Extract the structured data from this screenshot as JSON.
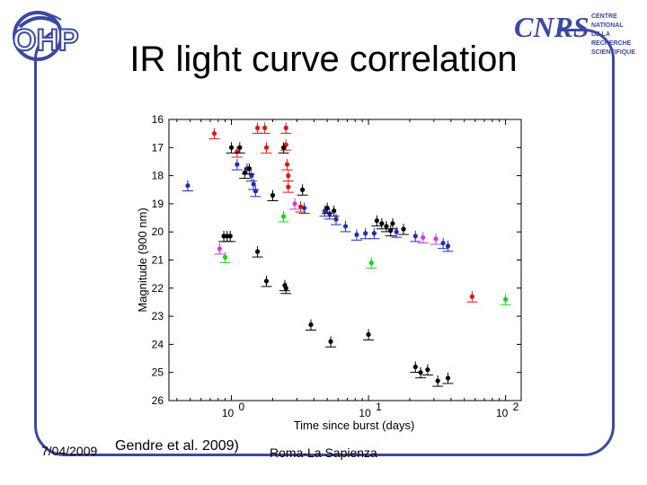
{
  "header": {
    "title": "IR light curve correlation",
    "logo_left_text": "OHP",
    "logo_right_brand": "CNRS",
    "logo_right_lines": [
      "CENTRE NATIONAL",
      "DE LA RECHERCHE",
      "SCIENTIFIQUE"
    ]
  },
  "footer": {
    "date": "7/04/2009",
    "citation": "Gendre et al. 2009)",
    "place": "Roma-La Sapienza"
  },
  "colors": {
    "frame": "#3b49a0",
    "black": "#000000",
    "blue": "#1f2fb0",
    "red": "#e01414",
    "magenta": "#d23cd2",
    "green": "#19d319"
  },
  "chart_data": {
    "type": "scatter",
    "xlabel": "Time since burst (days)",
    "ylabel": "Magnitude (900 nm)",
    "xscale": "log",
    "xlim": [
      0.35,
      130
    ],
    "ylim": [
      26,
      16
    ],
    "yticks": [
      16,
      17,
      18,
      19,
      20,
      21,
      22,
      23,
      24,
      25,
      26
    ],
    "xticks": [
      {
        "value": 1,
        "base": "10",
        "exp": "0"
      },
      {
        "value": 10,
        "base": "10",
        "exp": "1"
      },
      {
        "value": 100,
        "base": "10",
        "exp": "2"
      }
    ],
    "series": [
      {
        "color": "red",
        "points": [
          {
            "x": 0.75,
            "y": 16.5
          },
          {
            "x": 1.1,
            "y": 17.15
          },
          {
            "x": 1.55,
            "y": 16.3
          },
          {
            "x": 1.75,
            "y": 16.3
          },
          {
            "x": 1.8,
            "y": 17.0
          },
          {
            "x": 2.5,
            "y": 16.3
          },
          {
            "x": 2.5,
            "y": 16.9
          },
          {
            "x": 2.55,
            "y": 17.6
          },
          {
            "x": 2.6,
            "y": 18.0
          },
          {
            "x": 2.6,
            "y": 18.4
          },
          {
            "x": 3.2,
            "y": 19.1
          },
          {
            "x": 57,
            "y": 22.3
          }
        ]
      },
      {
        "color": "blue",
        "points": [
          {
            "x": 0.48,
            "y": 18.35
          },
          {
            "x": 1.1,
            "y": 17.6
          },
          {
            "x": 1.3,
            "y": 17.75
          },
          {
            "x": 1.4,
            "y": 18.0
          },
          {
            "x": 1.45,
            "y": 18.3
          },
          {
            "x": 1.5,
            "y": 18.55
          },
          {
            "x": 3.4,
            "y": 19.15
          },
          {
            "x": 4.8,
            "y": 19.25
          },
          {
            "x": 5.2,
            "y": 19.35
          },
          {
            "x": 5.8,
            "y": 19.55
          },
          {
            "x": 6.8,
            "y": 19.8
          },
          {
            "x": 8.2,
            "y": 20.1
          },
          {
            "x": 9.5,
            "y": 20.05
          },
          {
            "x": 11,
            "y": 20.05
          },
          {
            "x": 16,
            "y": 20.0
          },
          {
            "x": 22,
            "y": 20.15
          },
          {
            "x": 35,
            "y": 20.4
          },
          {
            "x": 38,
            "y": 20.5
          }
        ]
      },
      {
        "color": "black",
        "points": [
          {
            "x": 0.88,
            "y": 20.15
          },
          {
            "x": 0.93,
            "y": 20.15
          },
          {
            "x": 0.98,
            "y": 20.15
          },
          {
            "x": 1.0,
            "y": 17.0
          },
          {
            "x": 1.15,
            "y": 17.0
          },
          {
            "x": 1.25,
            "y": 17.9
          },
          {
            "x": 1.35,
            "y": 17.75
          },
          {
            "x": 1.55,
            "y": 20.7
          },
          {
            "x": 1.8,
            "y": 21.75
          },
          {
            "x": 2.0,
            "y": 18.7
          },
          {
            "x": 2.4,
            "y": 17.0
          },
          {
            "x": 2.45,
            "y": 21.9
          },
          {
            "x": 2.5,
            "y": 22.0
          },
          {
            "x": 3.3,
            "y": 18.5
          },
          {
            "x": 3.8,
            "y": 23.3
          },
          {
            "x": 5.0,
            "y": 19.15
          },
          {
            "x": 5.3,
            "y": 23.9
          },
          {
            "x": 5.6,
            "y": 19.25
          },
          {
            "x": 10,
            "y": 23.65
          },
          {
            "x": 11.5,
            "y": 19.6
          },
          {
            "x": 12.5,
            "y": 19.7
          },
          {
            "x": 13.5,
            "y": 19.8
          },
          {
            "x": 14.5,
            "y": 19.95
          },
          {
            "x": 15,
            "y": 19.7
          },
          {
            "x": 18,
            "y": 19.9
          },
          {
            "x": 22,
            "y": 24.8
          },
          {
            "x": 24,
            "y": 25.0
          },
          {
            "x": 27,
            "y": 24.9
          },
          {
            "x": 32,
            "y": 25.3
          },
          {
            "x": 38,
            "y": 25.2
          }
        ]
      },
      {
        "color": "magenta",
        "points": [
          {
            "x": 0.82,
            "y": 20.6
          },
          {
            "x": 2.9,
            "y": 19.0
          },
          {
            "x": 25,
            "y": 20.2
          },
          {
            "x": 31,
            "y": 20.25
          }
        ]
      },
      {
        "color": "green",
        "points": [
          {
            "x": 0.9,
            "y": 20.9
          },
          {
            "x": 2.4,
            "y": 19.45
          },
          {
            "x": 10.5,
            "y": 21.1
          },
          {
            "x": 100,
            "y": 22.4
          }
        ]
      }
    ]
  }
}
